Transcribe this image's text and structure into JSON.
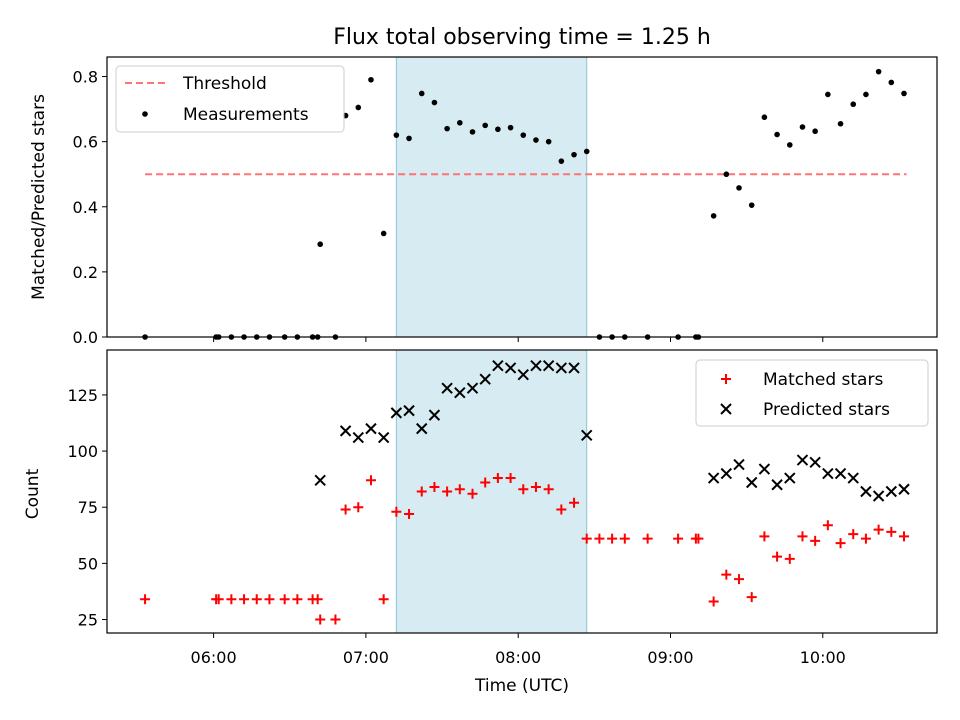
{
  "title": "Flux total observing time = 1.25 h",
  "chart_data": [
    {
      "type": "scatter",
      "panel": "top",
      "title": "Flux total observing time = 1.25 h",
      "xlabel": "",
      "ylabel": "Matched/Predicted stars",
      "xlim": [
        "05:18",
        "10:45"
      ],
      "ylim": [
        0,
        0.86
      ],
      "yticks": [
        "0.0",
        "0.2",
        "0.4",
        "0.6",
        "0.8"
      ],
      "grid": false,
      "legend": "top-left",
      "shaded_interval": [
        "07:12",
        "08:27"
      ],
      "threshold": {
        "name": "Threshold",
        "value": 0.5,
        "x_start": "05:33",
        "x_end": "10:33",
        "color": "#ff7373",
        "style": "dashed"
      },
      "series": [
        {
          "name": "Measurements",
          "color": "#000000",
          "marker": "dot",
          "points": [
            [
              "05:33",
              0.0
            ],
            [
              "06:01",
              0.0
            ],
            [
              "06:02",
              0.0
            ],
            [
              "06:07",
              0.0
            ],
            [
              "06:12",
              0.0
            ],
            [
              "06:17",
              0.0
            ],
            [
              "06:22",
              0.0
            ],
            [
              "06:28",
              0.0
            ],
            [
              "06:33",
              0.0
            ],
            [
              "06:39",
              0.0
            ],
            [
              "06:41",
              0.0
            ],
            [
              "06:42",
              0.285
            ],
            [
              "06:48",
              0.0
            ],
            [
              "06:52",
              0.68
            ],
            [
              "06:57",
              0.705
            ],
            [
              "07:02",
              0.79
            ],
            [
              "07:07",
              0.318
            ],
            [
              "07:12",
              0.62
            ],
            [
              "07:17",
              0.61
            ],
            [
              "07:22",
              0.748
            ],
            [
              "07:27",
              0.72
            ],
            [
              "07:32",
              0.64
            ],
            [
              "07:37",
              0.658
            ],
            [
              "07:42",
              0.63
            ],
            [
              "07:47",
              0.65
            ],
            [
              "07:52",
              0.638
            ],
            [
              "07:57",
              0.643
            ],
            [
              "08:02",
              0.62
            ],
            [
              "08:07",
              0.605
            ],
            [
              "08:12",
              0.6
            ],
            [
              "08:17",
              0.54
            ],
            [
              "08:22",
              0.56
            ],
            [
              "08:27",
              0.57
            ],
            [
              "08:32",
              0.0
            ],
            [
              "08:37",
              0.0
            ],
            [
              "08:42",
              0.0
            ],
            [
              "08:51",
              0.0
            ],
            [
              "09:03",
              0.0
            ],
            [
              "09:10",
              0.0
            ],
            [
              "09:11",
              0.0
            ],
            [
              "09:17",
              0.372
            ],
            [
              "09:22",
              0.5
            ],
            [
              "09:27",
              0.458
            ],
            [
              "09:32",
              0.405
            ],
            [
              "09:37",
              0.675
            ],
            [
              "09:42",
              0.622
            ],
            [
              "09:47",
              0.59
            ],
            [
              "09:52",
              0.645
            ],
            [
              "09:57",
              0.632
            ],
            [
              "10:02",
              0.745
            ],
            [
              "10:07",
              0.655
            ],
            [
              "10:12",
              0.715
            ],
            [
              "10:17",
              0.745
            ],
            [
              "10:22",
              0.815
            ],
            [
              "10:27",
              0.782
            ],
            [
              "10:32",
              0.748
            ]
          ]
        }
      ]
    },
    {
      "type": "scatter",
      "panel": "bottom",
      "title": "",
      "xlabel": "Time (UTC)",
      "ylabel": "Count",
      "xlim": [
        "05:18",
        "10:45"
      ],
      "ylim": [
        19,
        145
      ],
      "xticks": [
        "06:00",
        "07:00",
        "08:00",
        "09:00",
        "10:00"
      ],
      "yticks": [
        "25",
        "50",
        "75",
        "100",
        "125"
      ],
      "grid": false,
      "legend": "top-right",
      "shaded_interval": [
        "07:12",
        "08:27"
      ],
      "series": [
        {
          "name": "Matched stars",
          "color": "#ff0000",
          "marker": "plus",
          "points": [
            [
              "05:33",
              34
            ],
            [
              "06:01",
              34
            ],
            [
              "06:02",
              34
            ],
            [
              "06:07",
              34
            ],
            [
              "06:12",
              34
            ],
            [
              "06:17",
              34
            ],
            [
              "06:22",
              34
            ],
            [
              "06:28",
              34
            ],
            [
              "06:33",
              34
            ],
            [
              "06:39",
              34
            ],
            [
              "06:41",
              34
            ],
            [
              "06:42",
              25
            ],
            [
              "06:48",
              25
            ],
            [
              "06:52",
              74
            ],
            [
              "06:57",
              75
            ],
            [
              "07:02",
              87
            ],
            [
              "07:07",
              34
            ],
            [
              "07:12",
              73
            ],
            [
              "07:17",
              72
            ],
            [
              "07:22",
              82
            ],
            [
              "07:27",
              84
            ],
            [
              "07:32",
              82
            ],
            [
              "07:37",
              83
            ],
            [
              "07:42",
              81
            ],
            [
              "07:47",
              86
            ],
            [
              "07:52",
              88
            ],
            [
              "07:57",
              88
            ],
            [
              "08:02",
              83
            ],
            [
              "08:07",
              84
            ],
            [
              "08:12",
              83
            ],
            [
              "08:17",
              74
            ],
            [
              "08:22",
              77
            ],
            [
              "08:27",
              61
            ],
            [
              "08:32",
              61
            ],
            [
              "08:37",
              61
            ],
            [
              "08:42",
              61
            ],
            [
              "08:51",
              61
            ],
            [
              "09:03",
              61
            ],
            [
              "09:10",
              61
            ],
            [
              "09:11",
              61
            ],
            [
              "09:17",
              33
            ],
            [
              "09:22",
              45
            ],
            [
              "09:27",
              43
            ],
            [
              "09:32",
              35
            ],
            [
              "09:37",
              62
            ],
            [
              "09:42",
              53
            ],
            [
              "09:47",
              52
            ],
            [
              "09:52",
              62
            ],
            [
              "09:57",
              60
            ],
            [
              "10:02",
              67
            ],
            [
              "10:07",
              59
            ],
            [
              "10:12",
              63
            ],
            [
              "10:17",
              61
            ],
            [
              "10:22",
              65
            ],
            [
              "10:27",
              64
            ],
            [
              "10:32",
              62
            ]
          ]
        },
        {
          "name": "Predicted stars",
          "color": "#000000",
          "marker": "x",
          "points": [
            [
              "06:42",
              87
            ],
            [
              "06:52",
              109
            ],
            [
              "06:57",
              106
            ],
            [
              "07:02",
              110
            ],
            [
              "07:07",
              106
            ],
            [
              "07:12",
              117
            ],
            [
              "07:17",
              118
            ],
            [
              "07:22",
              110
            ],
            [
              "07:27",
              116
            ],
            [
              "07:32",
              128
            ],
            [
              "07:37",
              126
            ],
            [
              "07:42",
              128
            ],
            [
              "07:47",
              132
            ],
            [
              "07:52",
              138
            ],
            [
              "07:57",
              137
            ],
            [
              "08:02",
              134
            ],
            [
              "08:07",
              138
            ],
            [
              "08:12",
              138
            ],
            [
              "08:17",
              137
            ],
            [
              "08:22",
              137
            ],
            [
              "08:27",
              107
            ],
            [
              "09:17",
              88
            ],
            [
              "09:22",
              90
            ],
            [
              "09:27",
              94
            ],
            [
              "09:32",
              86
            ],
            [
              "09:37",
              92
            ],
            [
              "09:42",
              85
            ],
            [
              "09:47",
              88
            ],
            [
              "09:52",
              96
            ],
            [
              "09:57",
              95
            ],
            [
              "10:02",
              90
            ],
            [
              "10:07",
              90
            ],
            [
              "10:12",
              88
            ],
            [
              "10:17",
              82
            ],
            [
              "10:22",
              80
            ],
            [
              "10:27",
              82
            ],
            [
              "10:32",
              83
            ]
          ]
        }
      ]
    }
  ]
}
